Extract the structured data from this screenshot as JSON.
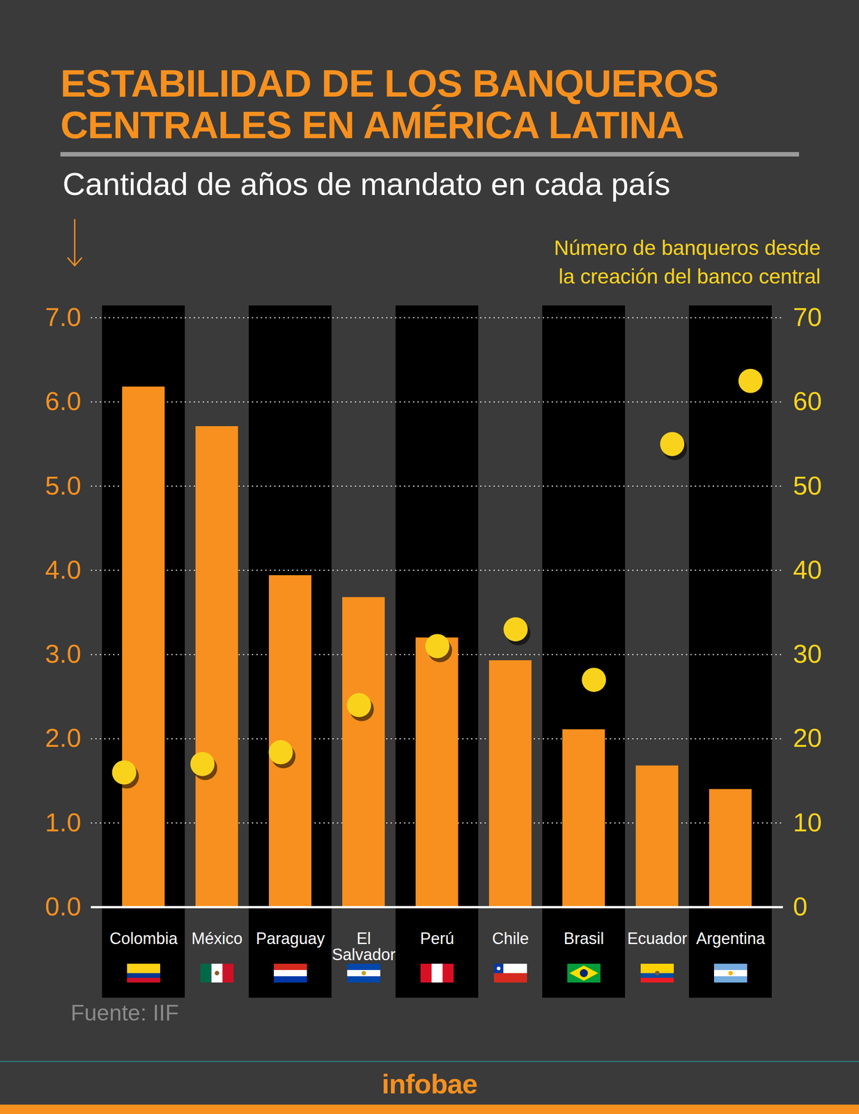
{
  "chart_data": {
    "type": "bar",
    "title": "ESTABILIDAD DE LOS BANQUEROS\nCENTRALES EN AMÉRICA LATINA",
    "categories": [
      "Colombia",
      "México",
      "Paraguay",
      "El Salvador",
      "Perú",
      "Chile",
      "Brasil",
      "Ecuador",
      "Argentina"
    ],
    "series": [
      {
        "name": "Cantidad de años de mandato en cada país",
        "type": "bar",
        "color": "#f7901e",
        "values": [
          6.18,
          5.71,
          3.94,
          3.68,
          3.2,
          2.93,
          2.11,
          1.68,
          1.4
        ]
      },
      {
        "name": "Número de banqueros desde\nla creación del banco central",
        "type": "scatter",
        "axis": "y2",
        "color": "#f9d31b",
        "marker": "circle",
        "values": [
          16,
          17,
          18.4,
          24,
          31,
          33,
          27,
          55,
          62.5
        ]
      }
    ],
    "ylim": [
      0,
      7
    ],
    "yticks": [
      0,
      1,
      2,
      3,
      4,
      5,
      6,
      7
    ],
    "y2lim": [
      0,
      70
    ],
    "y2ticks": [
      0,
      10,
      20,
      30,
      40,
      50,
      60,
      70
    ],
    "grid": true,
    "source": "Fuente: IIF",
    "credit": "infobae"
  }
}
